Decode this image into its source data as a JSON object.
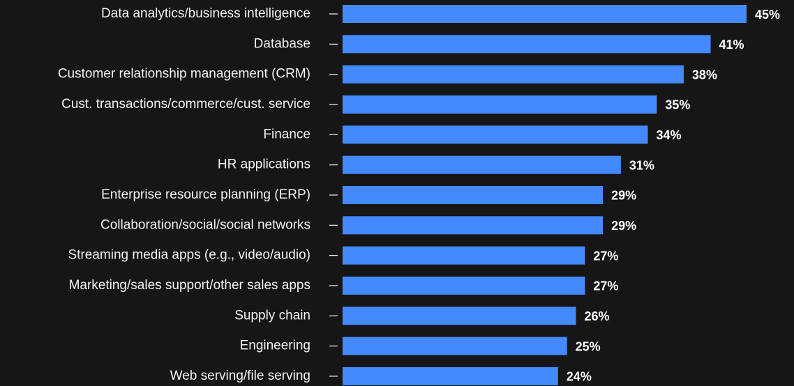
{
  "chart_data": {
    "type": "bar",
    "orientation": "horizontal",
    "color": "#4589ff",
    "categories": [
      "Data analytics/business intelligence",
      "Database",
      "Customer relationship management (CRM)",
      "Cust. transactions/commerce/cust. service",
      "Finance",
      "HR applications",
      "Enterprise resource planning (ERP)",
      "Collaboration/social/social networks",
      "Streaming media apps (e.g., video/audio)",
      "Marketing/sales support/other sales apps",
      "Supply chain",
      "Engineering",
      "Web serving/file serving"
    ],
    "values": [
      45,
      41,
      38,
      35,
      34,
      31,
      29,
      29,
      27,
      27,
      26,
      25,
      24
    ],
    "value_labels": [
      "45%",
      "41%",
      "38%",
      "35%",
      "34%",
      "31%",
      "29%",
      "29%",
      "27%",
      "27%",
      "26%",
      "25%",
      "24%"
    ]
  }
}
